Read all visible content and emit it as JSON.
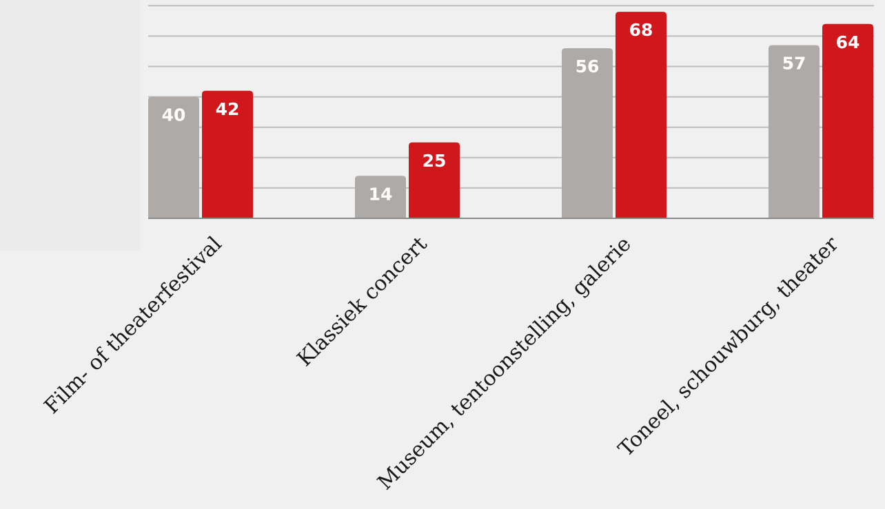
{
  "chart_data": {
    "type": "bar",
    "title": "",
    "xlabel": "",
    "ylabel": "",
    "categories": [
      "Film- of theaterfestival",
      "Klassiek concert",
      "Museum, tentoonstelling, galerie",
      "Toneel, schouwburg, theater"
    ],
    "series": [
      {
        "values": [
          40,
          14,
          56,
          57
        ],
        "color": "#aeaaa8"
      },
      {
        "values": [
          42,
          25,
          68,
          64
        ],
        "color": "#d0171b"
      }
    ],
    "ylim": [
      0,
      70
    ],
    "gridline_step": 10,
    "grid": true,
    "legend": "none",
    "data_labels": true
  }
}
